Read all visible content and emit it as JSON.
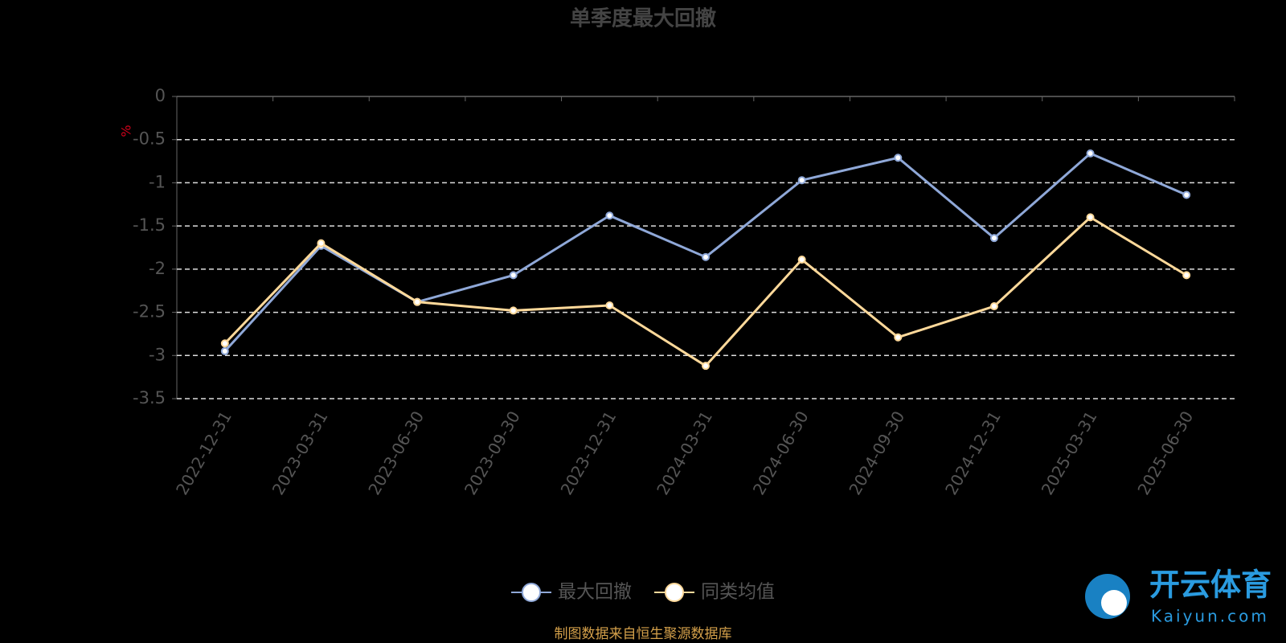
{
  "chart_data": {
    "type": "line",
    "title": "单季度最大回撤",
    "y_unit": "%",
    "categories": [
      "2022-12-31",
      "2023-03-31",
      "2023-06-30",
      "2023-09-30",
      "2023-12-31",
      "2024-03-31",
      "2024-06-30",
      "2024-09-30",
      "2024-12-31",
      "2025-03-31",
      "2025-06-30"
    ],
    "series": [
      {
        "name": "最大回撤",
        "color": "#8fa8d8",
        "values": [
          -2.95,
          -1.73,
          -2.38,
          -2.07,
          -1.38,
          -1.86,
          -0.97,
          -0.71,
          -1.64,
          -0.66,
          -1.14
        ]
      },
      {
        "name": "同类均值",
        "color": "#ffd99a",
        "values": [
          -2.86,
          -1.7,
          -2.38,
          -2.48,
          -2.42,
          -3.12,
          -1.89,
          -2.79,
          -2.43,
          -1.4,
          -2.07
        ]
      }
    ],
    "ylim": [
      -3.5,
      0
    ],
    "yticks": [
      0,
      -0.5,
      -1,
      -1.5,
      -2,
      -2.5,
      -3,
      -3.5
    ],
    "grid": true,
    "legend": "bottom",
    "source": "制图数据来自恒生聚源数据库"
  },
  "watermark": {
    "brand": "开云体育",
    "site": "Kaiyun.com"
  }
}
